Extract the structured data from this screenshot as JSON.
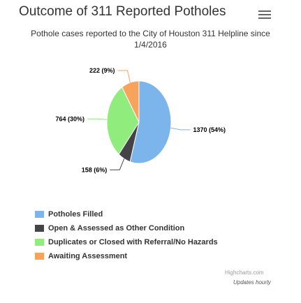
{
  "header": {
    "title": "Outcome of 311 Reported Potholes",
    "menu_icon": "hamburger-menu-icon"
  },
  "subtitle": "Pothole cases reported to the City of Houston 311 Helpline since 1/4/2016",
  "chart_data": {
    "type": "pie",
    "title": "Outcome of 311 Reported Potholes",
    "subtitle": "Pothole cases reported to the City of Houston 311 Helpline since 1/4/2016",
    "series": [
      {
        "name": "Potholes Filled",
        "value": 1370,
        "label": "1370 (54%)",
        "color": "#7cb5ec"
      },
      {
        "name": "Open & Assessed as Other Condition",
        "value": 158,
        "label": "158 (6%)",
        "color": "#434348"
      },
      {
        "name": "Duplicates or Closed with Referral/No Hazards",
        "value": 764,
        "label": "764 (30%)",
        "color": "#90ed7d"
      },
      {
        "name": "Awaiting Assessment",
        "value": 222,
        "label": "222 (9%)",
        "color": "#f7a35c"
      }
    ],
    "legend_position": "bottom-left"
  },
  "footer": {
    "credits": "Highcharts.com",
    "note": "Updates hourly"
  }
}
